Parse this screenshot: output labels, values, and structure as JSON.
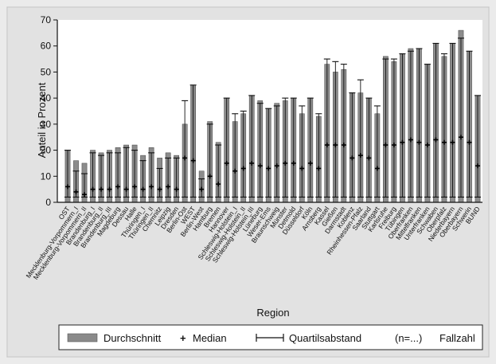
{
  "chart_data": {
    "type": "bar",
    "ylabel": "Anteil in Prozent",
    "xlabel": "Region",
    "ylim": [
      0,
      70
    ],
    "yticks": [
      0,
      10,
      20,
      30,
      40,
      50,
      60,
      70
    ],
    "grid": false,
    "legend_position": "bottom",
    "legend": {
      "mean": "Durchschnitt",
      "median_symbol": "+",
      "median": "Median",
      "iqr": "Quartilsabstand",
      "count_symbol": "(n=...)",
      "count": "Fallzahl"
    },
    "categories": [
      "OST",
      "Mecklenburg-Vorpommern_I",
      "Mecklenburg-Vorpommern_II",
      "Brandenburg_I",
      "Brandenburg_II",
      "Brandenburg_III",
      "Magdeburg",
      "Dessau",
      "Halle",
      "Thüringen_I",
      "Thüringen_II",
      "Chemnitz",
      "Leipzig",
      "Dresden",
      "Berlin-Ost",
      "WEST",
      "Berlin-West",
      "Hamburg",
      "Bremen",
      "Hannover",
      "Schleswig-Holstein_I",
      "Schleswig-Holstein_II",
      "Schleswig-Holstein_III",
      "Lüneburg",
      "Weser-Ems",
      "Braunschweig",
      "Münster",
      "Detmold",
      "Düsseldorf",
      "Köln",
      "Arnsberg",
      "Kassel",
      "Gießen",
      "Darmstadt",
      "Koblenz",
      "Rheinhessen-Pfalz",
      "Saarland",
      "Stuttgart",
      "Karlsruhe",
      "Freiburg",
      "Tübingen",
      "Oberfranken",
      "Mittelfranken",
      "Unterfranken",
      "Schwaben",
      "Oberpfalz",
      "Niederbayern",
      "Oberbayern",
      "Schwerin",
      "BUND"
    ],
    "series": [
      {
        "name": "Durchschnitt",
        "values": [
          20,
          16,
          15,
          20,
          19,
          20,
          21,
          22,
          22,
          18,
          21,
          17,
          19,
          18,
          30,
          45,
          12,
          31,
          23,
          40,
          31,
          34,
          41,
          39,
          36,
          38,
          39,
          40,
          34,
          40,
          33,
          53,
          50,
          51,
          42,
          42,
          40,
          34,
          56,
          54,
          57,
          59,
          59,
          53,
          61,
          56,
          61,
          66,
          58,
          41
        ]
      },
      {
        "name": "Median",
        "values": [
          6,
          4,
          3,
          5,
          5,
          5,
          6,
          5,
          6,
          5,
          6,
          5,
          6,
          5,
          17,
          16,
          5,
          10,
          7,
          15,
          12,
          13,
          15,
          14,
          13,
          14,
          15,
          15,
          13,
          15,
          13,
          22,
          22,
          22,
          17,
          18,
          17,
          13,
          22,
          22,
          23,
          24,
          23,
          22,
          24,
          23,
          23,
          25,
          23,
          14
        ]
      }
    ],
    "iqr_upper": [
      20,
      12,
      11,
      19,
      18,
      19,
      19,
      21,
      20,
      16,
      19,
      13,
      17,
      17,
      39,
      45,
      9,
      30,
      22,
      40,
      34,
      35,
      41,
      38,
      36,
      37,
      40,
      40,
      37,
      40,
      34,
      55,
      54,
      53,
      42,
      47,
      40,
      37,
      55,
      55,
      57,
      58,
      59,
      53,
      61,
      57,
      61,
      63,
      58,
      41
    ]
  }
}
